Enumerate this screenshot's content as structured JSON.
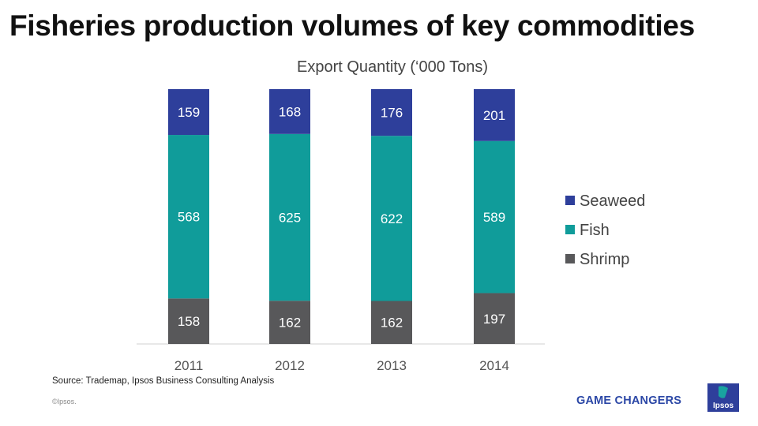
{
  "title": "Fisheries production volumes of key commodities",
  "source": "Source: Trademap, Ipsos Business Consulting Analysis",
  "copyright": "©Ipsos.",
  "tagline": "GAME CHANGERS",
  "logo_text": "Ipsos",
  "colors": {
    "Seaweed": "#2e3f9b",
    "Fish": "#109c9a",
    "Shrimp": "#58585a"
  },
  "chart_data": {
    "type": "bar",
    "stacked": true,
    "title": "Export Quantity (‘000 Tons)",
    "xlabel": "",
    "ylabel": "",
    "categories": [
      "2011",
      "2012",
      "2013",
      "2014"
    ],
    "series": [
      {
        "name": "Shrimp",
        "values": [
          158,
          162,
          162,
          197
        ]
      },
      {
        "name": "Fish",
        "values": [
          568,
          625,
          622,
          589
        ]
      },
      {
        "name": "Seaweed",
        "values": [
          159,
          168,
          176,
          201
        ]
      }
    ],
    "legend": [
      "Seaweed",
      "Fish",
      "Shrimp"
    ],
    "legend_position": "right",
    "normalized": true
  }
}
